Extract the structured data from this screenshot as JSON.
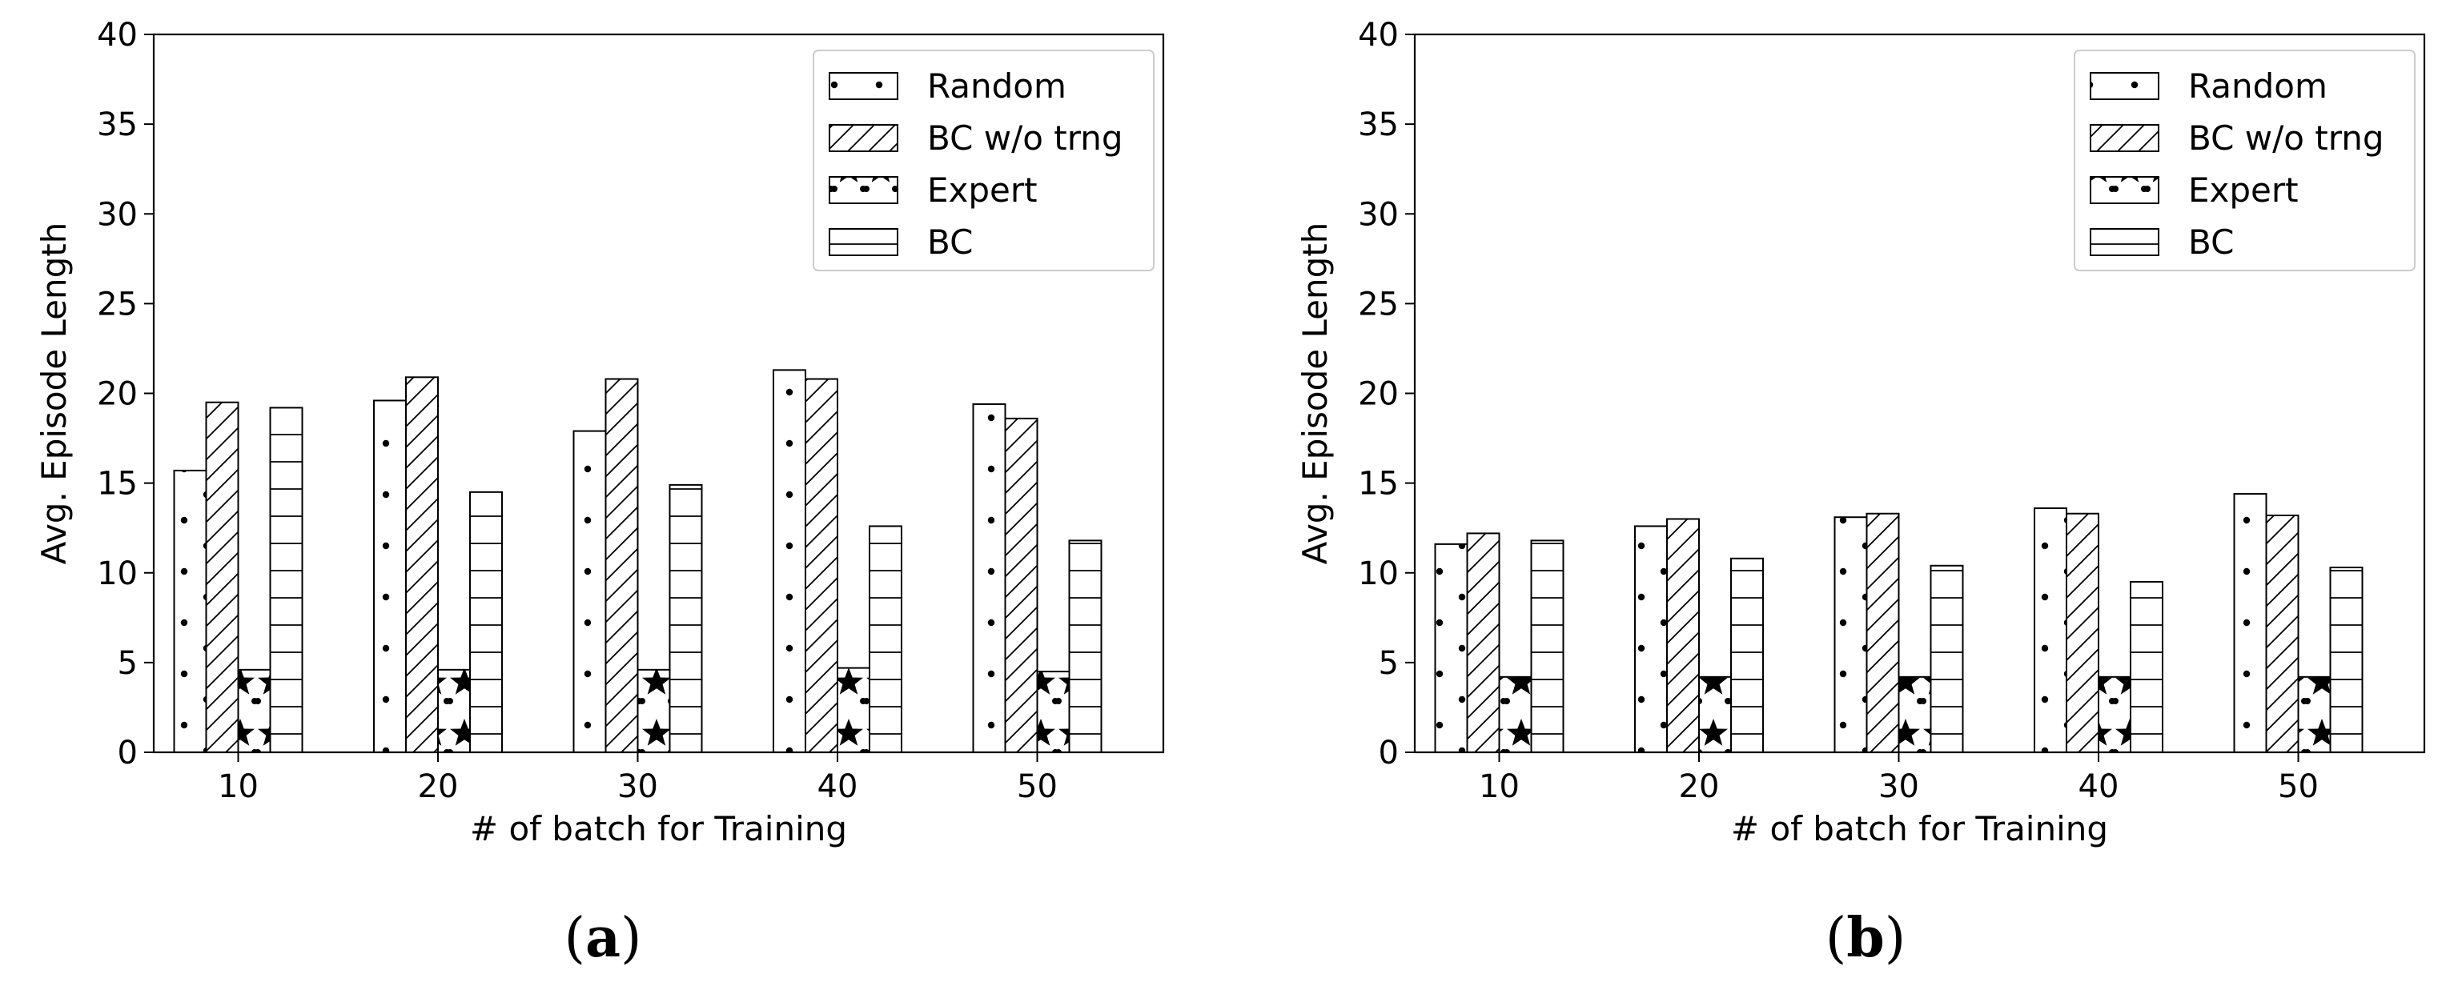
{
  "chart_data": [
    {
      "panel_label": "a",
      "type": "bar",
      "xlabel": "# of batch for Training",
      "ylabel": "Avg. Episode Length",
      "ylim": [
        0,
        40
      ],
      "yticks": [
        0,
        5,
        10,
        15,
        20,
        25,
        30,
        35,
        40
      ],
      "categories": [
        "10",
        "20",
        "30",
        "40",
        "50"
      ],
      "legend_position": "top-right",
      "series": [
        {
          "name": "Random",
          "hatch": "dots",
          "values": [
            15.7,
            19.6,
            17.9,
            21.3,
            19.4
          ]
        },
        {
          "name": "BC w/o trng",
          "hatch": "diagonal",
          "values": [
            19.5,
            20.9,
            20.8,
            20.8,
            18.6
          ]
        },
        {
          "name": "Expert",
          "hatch": "stars",
          "values": [
            4.6,
            4.6,
            4.6,
            4.7,
            4.5
          ]
        },
        {
          "name": "BC",
          "hatch": "horizontal",
          "values": [
            19.2,
            14.5,
            14.9,
            12.6,
            11.8
          ]
        }
      ]
    },
    {
      "panel_label": "b",
      "type": "bar",
      "xlabel": "# of batch for Training",
      "ylabel": "Avg. Episode Length",
      "ylim": [
        0,
        40
      ],
      "yticks": [
        0,
        5,
        10,
        15,
        20,
        25,
        30,
        35,
        40
      ],
      "categories": [
        "10",
        "20",
        "30",
        "40",
        "50"
      ],
      "legend_position": "top-right",
      "series": [
        {
          "name": "Random",
          "hatch": "dots",
          "values": [
            11.6,
            12.6,
            13.1,
            13.6,
            14.4
          ]
        },
        {
          "name": "BC w/o trng",
          "hatch": "diagonal",
          "values": [
            12.2,
            13.0,
            13.3,
            13.3,
            13.2
          ]
        },
        {
          "name": "Expert",
          "hatch": "stars",
          "values": [
            4.2,
            4.2,
            4.2,
            4.2,
            4.2
          ]
        },
        {
          "name": "BC",
          "hatch": "horizontal",
          "values": [
            11.8,
            10.8,
            10.4,
            9.5,
            10.3
          ]
        }
      ]
    }
  ]
}
